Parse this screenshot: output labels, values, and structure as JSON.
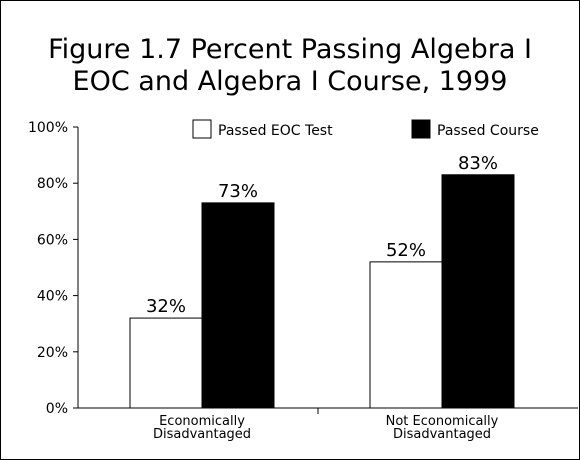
{
  "chart_data": {
    "type": "bar",
    "title": [
      "Figure 1.7  Percent Passing Algebra I",
      "EOC and Algebra I Course, 1999"
    ],
    "categories": [
      [
        "Economically",
        "Disadvantaged"
      ],
      [
        "Not Economically",
        "Disadvantaged"
      ]
    ],
    "series": [
      {
        "name": "Passed EOC Test",
        "color": "#ffffff",
        "values": [
          32,
          52
        ],
        "value_labels": [
          "32%",
          "52%"
        ]
      },
      {
        "name": "Passed Course",
        "color": "#000000",
        "values": [
          73,
          83
        ],
        "value_labels": [
          "73%",
          "83%"
        ]
      }
    ],
    "ylim": [
      0,
      100
    ],
    "yticks": [
      {
        "value": 0,
        "label": "0%"
      },
      {
        "value": 20,
        "label": "20%"
      },
      {
        "value": 40,
        "label": "40%"
      },
      {
        "value": 60,
        "label": "60%"
      },
      {
        "value": 80,
        "label": "80%"
      },
      {
        "value": 100,
        "label": "100%"
      }
    ]
  }
}
